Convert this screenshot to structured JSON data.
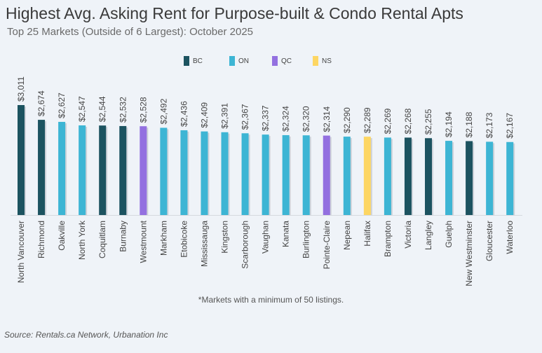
{
  "header": {
    "title": "Highest Avg. Asking Rent for Purpose-built & Condo Rental Apts",
    "subtitle": "Top 25 Markets (Outside of 6 Largest): October 2025"
  },
  "footer": {
    "note": "*Markets with a minimum of 50 listings.",
    "source": "Source: Rentals.ca Network, Urbanation Inc"
  },
  "chart_data": {
    "type": "bar",
    "title": "Highest Avg. Asking Rent for Purpose-built & Condo Rental Apts",
    "subtitle": "Top 25 Markets (Outside of 6 Largest): October 2025",
    "xlabel": "",
    "ylabel": "",
    "ylim": [
      500,
      3100
    ],
    "grid": false,
    "legend_placement": "top-center",
    "legend": [
      {
        "name": "BC",
        "color": "#1c5360"
      },
      {
        "name": "ON",
        "color": "#3db5d4"
      },
      {
        "name": "QC",
        "color": "#9370e0"
      },
      {
        "name": "NS",
        "color": "#fdd663"
      }
    ],
    "categories": [
      "North Vancouver",
      "Richmond",
      "Oakville",
      "North York",
      "Coquitlam",
      "Burnaby",
      "Westmount",
      "Markham",
      "Etobicoke",
      "Mississauga",
      "Kingston",
      "Scarborough",
      "Vaughan",
      "Kanata",
      "Burlington",
      "Pointe-Claire",
      "Nepean",
      "Halifax",
      "Brampton",
      "Victoria",
      "Langley",
      "Guelph",
      "New Westminster",
      "Gloucester",
      "Waterloo"
    ],
    "values": [
      3011,
      2674,
      2627,
      2547,
      2544,
      2532,
      2528,
      2492,
      2436,
      2409,
      2391,
      2367,
      2337,
      2324,
      2320,
      2314,
      2290,
      2289,
      2269,
      2268,
      2255,
      2194,
      2188,
      2173,
      2167
    ],
    "labels": [
      "$3,011",
      "$2,674",
      "$2,627",
      "$2,547",
      "$2,544",
      "$2,532",
      "$2,528",
      "$2,492",
      "$2,436",
      "$2,409",
      "$2,391",
      "$2,367",
      "$2,337",
      "$2,324",
      "$2,320",
      "$2,314",
      "$2,290",
      "$2,289",
      "$2,269",
      "$2,268",
      "$2,255",
      "$2,194",
      "$2,188",
      "$2,173",
      "$2,167"
    ],
    "province": [
      "BC",
      "BC",
      "ON",
      "ON",
      "BC",
      "BC",
      "QC",
      "ON",
      "ON",
      "ON",
      "ON",
      "ON",
      "ON",
      "ON",
      "ON",
      "QC",
      "ON",
      "NS",
      "ON",
      "BC",
      "BC",
      "ON",
      "BC",
      "ON",
      "ON"
    ]
  }
}
